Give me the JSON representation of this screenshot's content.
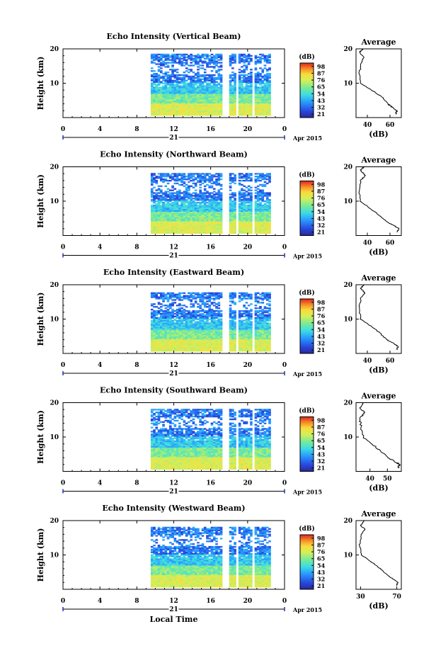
{
  "chart_data": [
    {
      "type": "heatmap",
      "title": "Echo Intensity (Vertical Beam)",
      "ylabel": "Height (km)",
      "xlabel": "",
      "xlim": [
        0,
        24
      ],
      "ylim": [
        0,
        20
      ],
      "xticks": [
        "0",
        "4",
        "8",
        "12",
        "16",
        "20",
        "0"
      ],
      "yticks": [
        "10",
        "20"
      ],
      "day_label": "21",
      "month_label": "Apr 2015",
      "colorbar": {
        "unit": "(dB)",
        "ticks": [
          "21",
          "32",
          "43",
          "54",
          "65",
          "76",
          "87",
          "98"
        ],
        "range": [
          21,
          98
        ]
      },
      "data_time_range": [
        9.5,
        22.5
      ],
      "data_gaps": [
        [
          17.2,
          17.8
        ],
        [
          18.6,
          18.8
        ],
        [
          20.4,
          20.6
        ]
      ],
      "max_height_km": 18.5,
      "profile": {
        "title": "Average",
        "xlabel": "(dB)",
        "xticks": [
          "40",
          "60"
        ],
        "xlim": [
          30,
          70
        ],
        "points": [
          [
            36,
            20
          ],
          [
            33,
            19
          ],
          [
            37,
            17.5
          ],
          [
            35,
            16
          ],
          [
            33,
            13
          ],
          [
            34,
            10
          ],
          [
            44,
            8
          ],
          [
            53,
            6
          ],
          [
            58,
            4
          ],
          [
            62,
            3
          ],
          [
            66,
            2
          ],
          [
            65,
            1
          ]
        ]
      }
    },
    {
      "type": "heatmap",
      "title": "Echo Intensity (Northward Beam)",
      "ylabel": "Height (km)",
      "xlabel": "",
      "xlim": [
        0,
        24
      ],
      "ylim": [
        0,
        20
      ],
      "xticks": [
        "0",
        "4",
        "8",
        "12",
        "16",
        "20",
        "0"
      ],
      "yticks": [
        "10",
        "20"
      ],
      "day_label": "21",
      "month_label": "Apr 2015",
      "colorbar": {
        "unit": "(dB)",
        "ticks": [
          "21",
          "32",
          "43",
          "54",
          "65",
          "76",
          "87",
          "98"
        ],
        "range": [
          21,
          98
        ]
      },
      "data_time_range": [
        9.5,
        22.5
      ],
      "data_gaps": [
        [
          17.2,
          17.8
        ],
        [
          18.6,
          18.8
        ],
        [
          20.4,
          20.6
        ]
      ],
      "max_height_km": 18.0,
      "profile": {
        "title": "Average",
        "xlabel": "(dB)",
        "xticks": [
          "40",
          "60"
        ],
        "xlim": [
          30,
          70
        ],
        "points": [
          [
            37,
            20
          ],
          [
            34,
            19
          ],
          [
            38,
            17.5
          ],
          [
            34,
            16
          ],
          [
            33,
            13
          ],
          [
            34,
            10
          ],
          [
            42,
            8
          ],
          [
            50,
            6
          ],
          [
            57,
            4
          ],
          [
            63,
            3
          ],
          [
            68,
            2
          ],
          [
            66,
            1
          ]
        ]
      }
    },
    {
      "type": "heatmap",
      "title": "Echo Intensity (Eastward Beam)",
      "ylabel": "Height (km)",
      "xlabel": "",
      "xlim": [
        0,
        24
      ],
      "ylim": [
        0,
        20
      ],
      "xticks": [
        "0",
        "4",
        "8",
        "12",
        "16",
        "20",
        "0"
      ],
      "yticks": [
        "10",
        "20"
      ],
      "day_label": "21",
      "month_label": "Apr 2015",
      "colorbar": {
        "unit": "(dB)",
        "ticks": [
          "21",
          "32",
          "43",
          "54",
          "65",
          "76",
          "87",
          "98"
        ],
        "range": [
          21,
          98
        ]
      },
      "data_time_range": [
        9.5,
        22.5
      ],
      "data_gaps": [
        [
          17.2,
          17.8
        ],
        [
          18.6,
          18.8
        ],
        [
          20.4,
          20.6
        ]
      ],
      "max_height_km": 17.8,
      "profile": {
        "title": "Average",
        "xlabel": "(dB)",
        "xticks": [
          "40",
          "60"
        ],
        "xlim": [
          30,
          70
        ],
        "points": [
          [
            37,
            20
          ],
          [
            34,
            19
          ],
          [
            38,
            17.5
          ],
          [
            34,
            16
          ],
          [
            33,
            13
          ],
          [
            34,
            10
          ],
          [
            43,
            8
          ],
          [
            51,
            6
          ],
          [
            57,
            4
          ],
          [
            63,
            3
          ],
          [
            67,
            2
          ],
          [
            66,
            1
          ]
        ]
      }
    },
    {
      "type": "heatmap",
      "title": "Echo Intensity (Southward Beam)",
      "ylabel": "Height (km)",
      "xlabel": "",
      "xlim": [
        0,
        24
      ],
      "ylim": [
        0,
        20
      ],
      "xticks": [
        "0",
        "4",
        "8",
        "12",
        "16",
        "20",
        "0"
      ],
      "yticks": [
        "10",
        "20"
      ],
      "day_label": "21",
      "month_label": "Apr 2015",
      "colorbar": {
        "unit": "(dB)",
        "ticks": [
          "21",
          "32",
          "43",
          "54",
          "65",
          "76",
          "87",
          "98"
        ],
        "range": [
          21,
          98
        ]
      },
      "data_time_range": [
        9.5,
        22.5
      ],
      "data_gaps": [
        [
          17.2,
          17.8
        ],
        [
          18.6,
          18.8
        ],
        [
          20.4,
          20.6
        ]
      ],
      "max_height_km": 18.0,
      "profile": {
        "title": "Average",
        "xlabel": "(dB)",
        "xticks": [
          "40",
          "50"
        ],
        "xlim": [
          32,
          58
        ],
        "points": [
          [
            36,
            20
          ],
          [
            34,
            18.5
          ],
          [
            37,
            17
          ],
          [
            34,
            15.5
          ],
          [
            35,
            13
          ],
          [
            36,
            10
          ],
          [
            41,
            8
          ],
          [
            46,
            6
          ],
          [
            50,
            4
          ],
          [
            54,
            3
          ],
          [
            57,
            2
          ],
          [
            56,
            1
          ]
        ]
      }
    },
    {
      "type": "heatmap",
      "title": "Echo Intensity (Westward Beam)",
      "ylabel": "Height (km)",
      "xlabel": "Local Time",
      "xlim": [
        0,
        24
      ],
      "ylim": [
        0,
        20
      ],
      "xticks": [
        "0",
        "4",
        "8",
        "12",
        "16",
        "20",
        "0"
      ],
      "yticks": [
        "10",
        "20"
      ],
      "day_label": "21",
      "month_label": "Apr 2015",
      "colorbar": {
        "unit": "(dB)",
        "ticks": [
          "21",
          "32",
          "43",
          "54",
          "65",
          "76",
          "87",
          "98"
        ],
        "range": [
          21,
          98
        ]
      },
      "data_time_range": [
        9.5,
        22.5
      ],
      "data_gaps": [
        [
          17.2,
          17.8
        ],
        [
          18.6,
          18.8
        ],
        [
          20.4,
          20.6
        ]
      ],
      "max_height_km": 18.0,
      "profile": {
        "title": "Average",
        "xlabel": "(dB)",
        "xticks": [
          "30",
          "70"
        ],
        "xlim": [
          25,
          75
        ],
        "points": [
          [
            34,
            20
          ],
          [
            30,
            18.5
          ],
          [
            35,
            17.5
          ],
          [
            31,
            16
          ],
          [
            29,
            13
          ],
          [
            31,
            10
          ],
          [
            42,
            8
          ],
          [
            52,
            6
          ],
          [
            60,
            4
          ],
          [
            66,
            3
          ],
          [
            71,
            2
          ],
          [
            70,
            1
          ]
        ]
      }
    }
  ]
}
